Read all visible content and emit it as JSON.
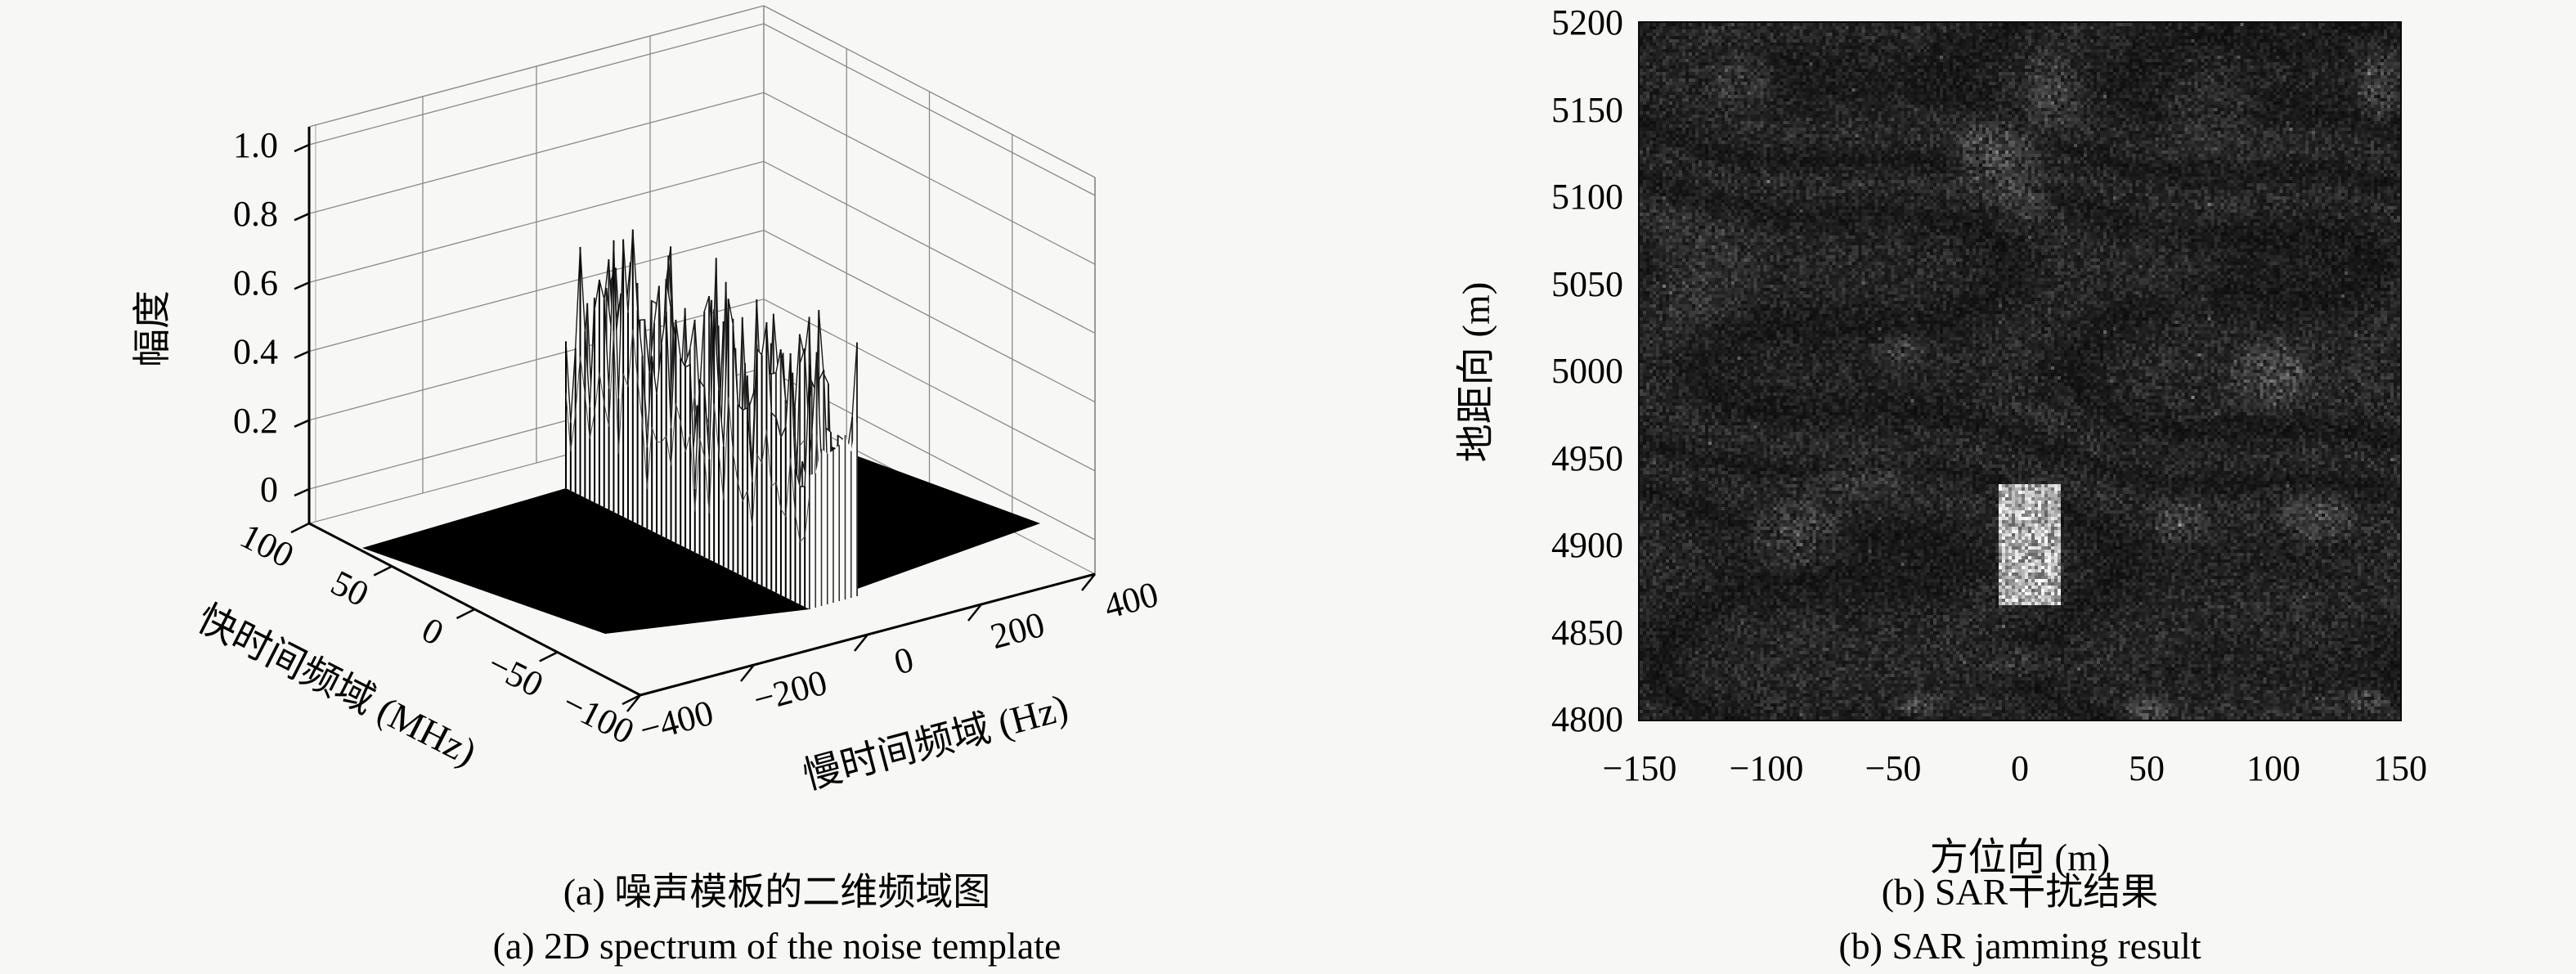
{
  "page": {
    "background": "#f7f7f5",
    "ink": "#000000",
    "sar_base_color": "#1c1c1c"
  },
  "chart_data": [
    {
      "type": "3d-surface",
      "caption_zh": "(a) 噪声模板的二维频域图",
      "caption_en": "(a) 2D spectrum of the noise template",
      "xlabel": "慢时间频域 (Hz)",
      "ylabel": "快时间频域 (MHz)",
      "zlabel": "幅度",
      "xlim": [
        -400,
        400
      ],
      "ylim": [
        -100,
        100
      ],
      "zlim": [
        0,
        1.0
      ],
      "xtick_values": [
        -400,
        -200,
        0,
        200,
        400
      ],
      "xtick_labels": [
        "−400",
        "−200",
        "0",
        "200",
        "400"
      ],
      "ytick_values": [
        100,
        50,
        0,
        -50,
        -100
      ],
      "ytick_labels": [
        "100",
        "50",
        "0",
        "−50",
        "−100"
      ],
      "ztick_values": [
        0,
        0.2,
        0.4,
        0.6,
        0.8,
        1.0
      ],
      "ztick_labels": [
        "0",
        "0.2",
        "0.4",
        "0.6",
        "0.8",
        "1.0"
      ],
      "grid": true,
      "surface_floor_amplitude": 0,
      "noise_band": {
        "slow_time_range_hz": [
          -100,
          -15
        ],
        "fast_time_range_mhz": [
          -100,
          50
        ],
        "amplitude_range": [
          0.15,
          0.92
        ],
        "mean_amplitude": 0.55,
        "note": "band of random noise spikes rising from a flat zero-amplitude (black) floor; individual spike values are random and not readable"
      }
    },
    {
      "type": "heatmap",
      "caption_zh": "(b) SAR干扰结果",
      "caption_en": "(b) SAR jamming result",
      "xlabel": "方位向 (m)",
      "ylabel": "地距向 (m)",
      "xlim": [
        -150,
        150
      ],
      "ylim": [
        4800,
        5200
      ],
      "xtick_values": [
        -150,
        -100,
        -50,
        0,
        50,
        100,
        150
      ],
      "xtick_labels": [
        "−150",
        "−100",
        "−50",
        "0",
        "50",
        "100",
        "150"
      ],
      "ytick_values": [
        5200,
        5150,
        5100,
        5050,
        5000,
        4950,
        4900,
        4850,
        4800
      ],
      "ytick_labels": [
        "5200",
        "5150",
        "5100",
        "5050",
        "5000",
        "4950",
        "4900",
        "4850",
        "4800"
      ],
      "colormap": "gray",
      "background_speckle_gray_range": [
        14,
        60
      ],
      "bright_target_rect": {
        "azimuth_m": [
          -8,
          16
        ],
        "range_m": [
          4865,
          4935
        ]
      },
      "clutter_patches": [
        {
          "az": -10,
          "rg": 5125,
          "rx": 20,
          "ry": 30,
          "gain": 0.3
        },
        {
          "az": 3,
          "rg": 5102,
          "rx": 13,
          "ry": 18,
          "gain": 0.2
        },
        {
          "az": -88,
          "rg": 4905,
          "rx": 24,
          "ry": 24,
          "gain": 0.3
        },
        {
          "az": 63,
          "rg": 4913,
          "rx": 15,
          "ry": 14,
          "gain": 0.26
        },
        {
          "az": 100,
          "rg": 4998,
          "rx": 18,
          "ry": 24,
          "gain": 0.32
        },
        {
          "az": 118,
          "rg": 4915,
          "rx": 17,
          "ry": 18,
          "gain": 0.28
        },
        {
          "az": -48,
          "rg": 5012,
          "rx": 13,
          "ry": 14,
          "gain": 0.22
        },
        {
          "az": 142,
          "rg": 5165,
          "rx": 11,
          "ry": 26,
          "gain": 0.26
        },
        {
          "az": 0,
          "rg": 4833,
          "rx": 15,
          "ry": 12,
          "gain": 0.22
        },
        {
          "az": -40,
          "rg": 4807,
          "rx": 11,
          "ry": 8,
          "gain": 0.3
        },
        {
          "az": 50,
          "rg": 4805,
          "rx": 12,
          "ry": 8,
          "gain": 0.28
        },
        {
          "az": 137,
          "rg": 4810,
          "rx": 11,
          "ry": 8,
          "gain": 0.26
        },
        {
          "az": -110,
          "rg": 5168,
          "rx": 15,
          "ry": 20,
          "gain": 0.22
        },
        {
          "az": 75,
          "rg": 5148,
          "rx": 22,
          "ry": 26,
          "gain": 0.18
        },
        {
          "az": -62,
          "rg": 4940,
          "rx": 26,
          "ry": 16,
          "gain": 0.15
        },
        {
          "az": 12,
          "rg": 5158,
          "rx": 13,
          "ry": 32,
          "gain": 0.22
        },
        {
          "az": -125,
          "rg": 5060,
          "rx": 30,
          "ry": 50,
          "gain": 0.1
        },
        {
          "az": 60,
          "rg": 5060,
          "rx": 25,
          "ry": 30,
          "gain": 0.1
        }
      ]
    }
  ]
}
